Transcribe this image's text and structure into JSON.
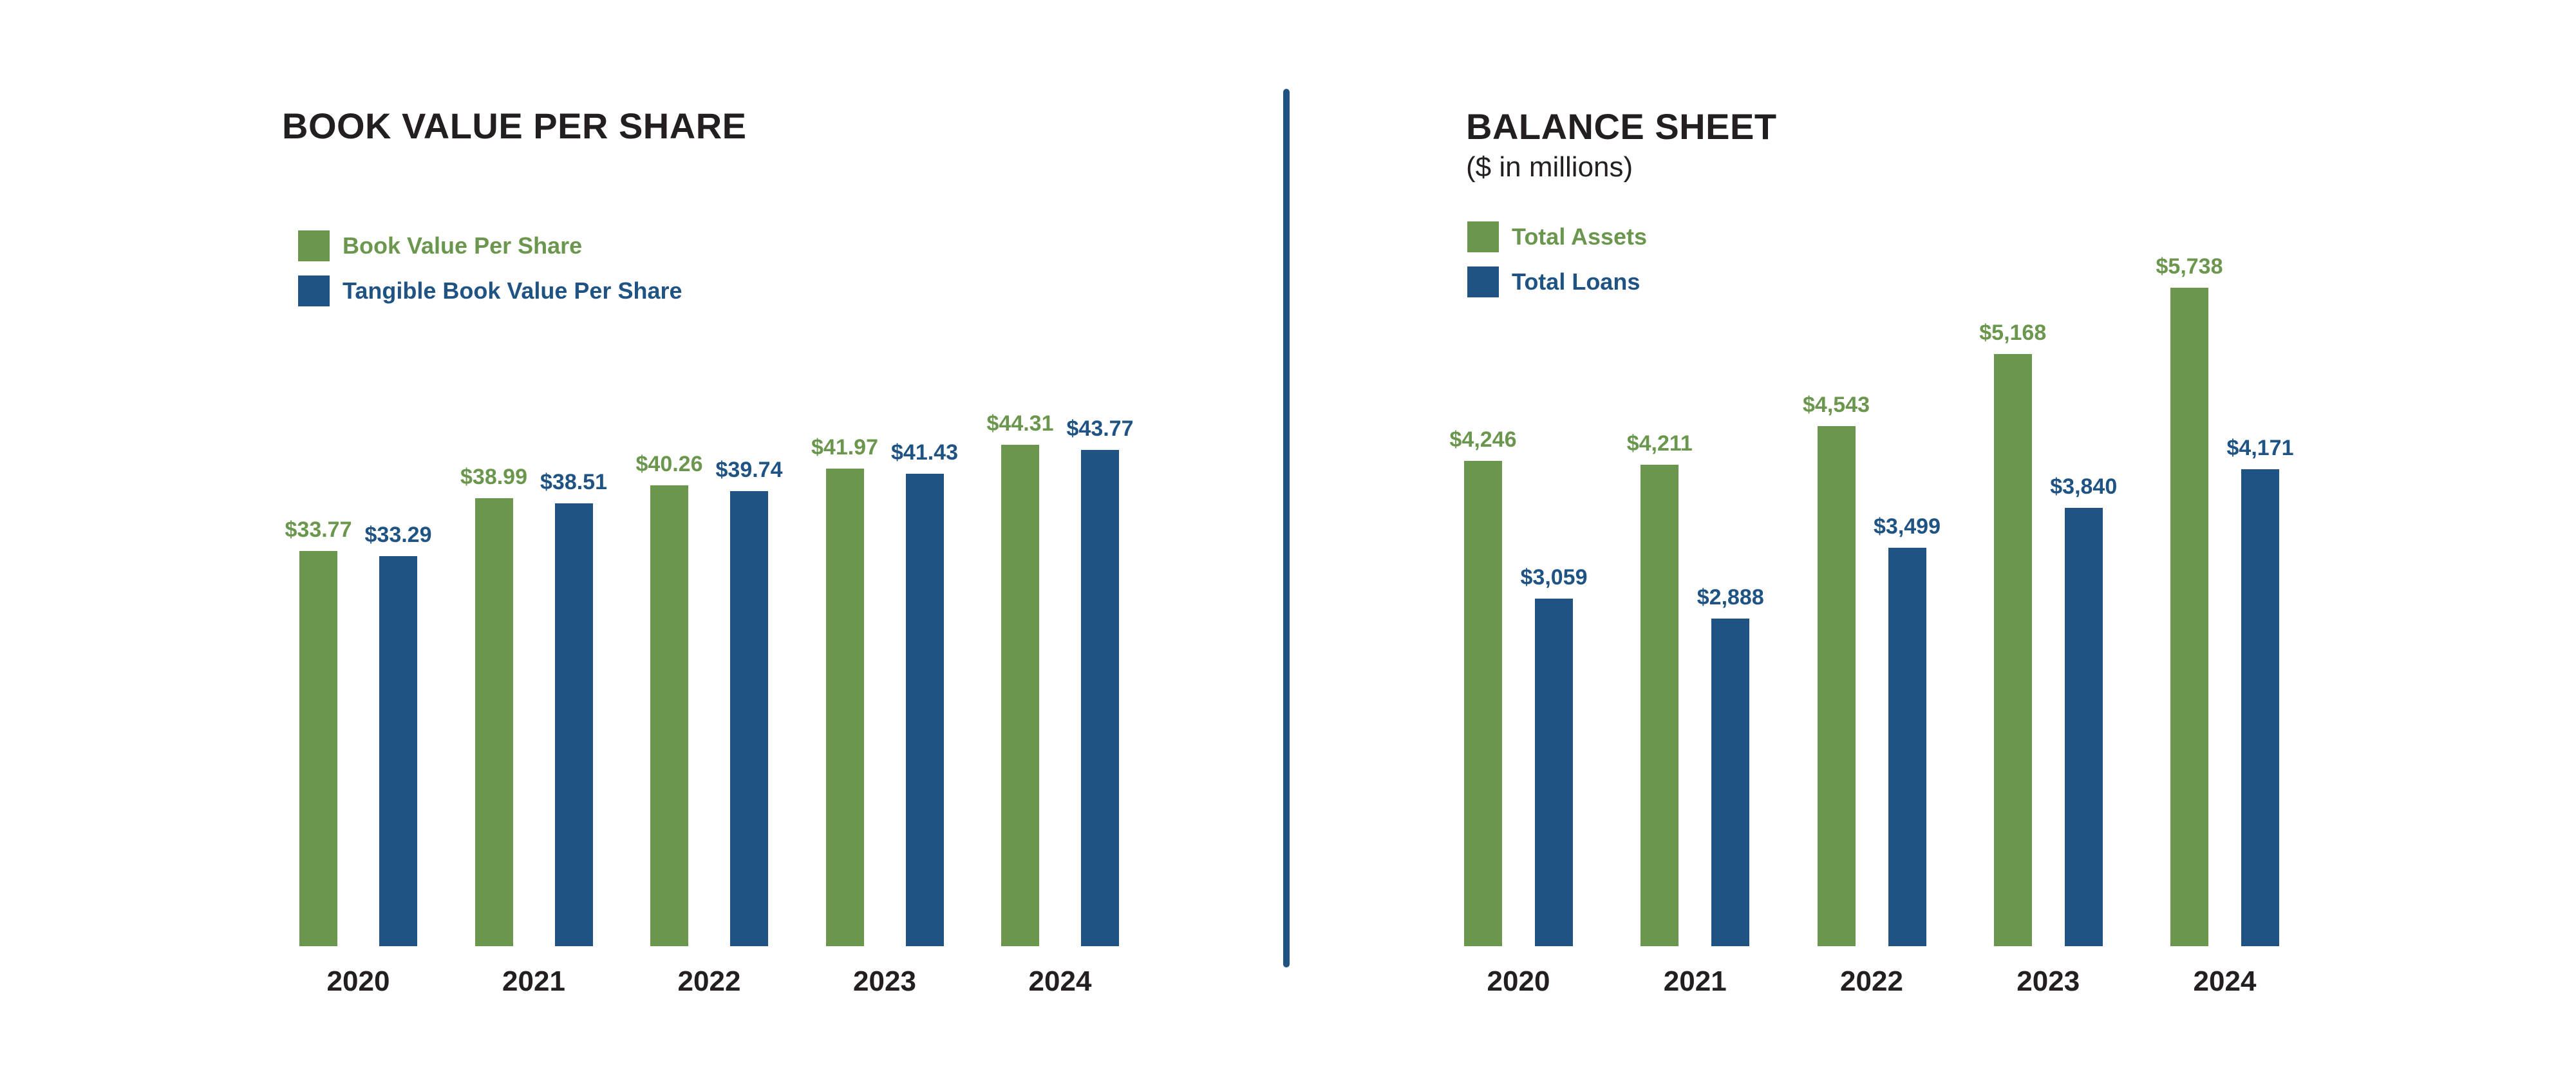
{
  "colors": {
    "green": "#6a974d",
    "blue": "#1f5383",
    "text": "#231f20",
    "divider": "#1f5383"
  },
  "left_chart": {
    "title": "BOOK VALUE PER SHARE",
    "legend": [
      {
        "label": "Book Value Per Share",
        "color": "#6a974d"
      },
      {
        "label": "Tangible Book Value Per Share",
        "color": "#1f5383"
      }
    ],
    "years": [
      "2020",
      "2021",
      "2022",
      "2023",
      "2024"
    ],
    "series_a_labels": [
      "$33.77",
      "$38.99",
      "$40.26",
      "$41.97",
      "$44.31"
    ],
    "series_b_labels": [
      "$33.29",
      "$38.51",
      "$39.74",
      "$41.43",
      "$43.77"
    ]
  },
  "right_chart": {
    "title": "BALANCE SHEET",
    "subtitle": "($ in millions)",
    "legend": [
      {
        "label": "Total Assets",
        "color": "#6a974d"
      },
      {
        "label": "Total Loans",
        "color": "#1f5383"
      }
    ],
    "years": [
      "2020",
      "2021",
      "2022",
      "2023",
      "2024"
    ],
    "series_a_labels": [
      "$4,246",
      "$4,211",
      "$4,543",
      "$5,168",
      "$5,738"
    ],
    "series_b_labels": [
      "$3,059",
      "$2,888",
      "$3,499",
      "$3,840",
      "$4,171"
    ]
  },
  "chart_data": [
    {
      "type": "bar",
      "title": "BOOK VALUE PER SHARE",
      "xlabel": "",
      "ylabel": "",
      "categories": [
        "2020",
        "2021",
        "2022",
        "2023",
        "2024"
      ],
      "series": [
        {
          "name": "Book Value Per Share",
          "color": "#6a974d",
          "values": [
            33.77,
            38.99,
            40.26,
            41.97,
            44.31
          ]
        },
        {
          "name": "Tangible Book Value Per Share",
          "color": "#1f5383",
          "values": [
            33.29,
            38.51,
            39.74,
            41.43,
            43.77
          ]
        }
      ],
      "data_labels": true,
      "grid": false,
      "legend_position": "top-left"
    },
    {
      "type": "bar",
      "title": "BALANCE SHEET",
      "subtitle": "($ in millions)",
      "xlabel": "",
      "ylabel": "",
      "categories": [
        "2020",
        "2021",
        "2022",
        "2023",
        "2024"
      ],
      "series": [
        {
          "name": "Total Assets",
          "color": "#6a974d",
          "values": [
            4246,
            4211,
            4543,
            5168,
            5738
          ]
        },
        {
          "name": "Total Loans",
          "color": "#1f5383",
          "values": [
            3059,
            2888,
            3499,
            3840,
            4171
          ]
        }
      ],
      "data_labels": true,
      "grid": false,
      "legend_position": "top-left"
    }
  ]
}
